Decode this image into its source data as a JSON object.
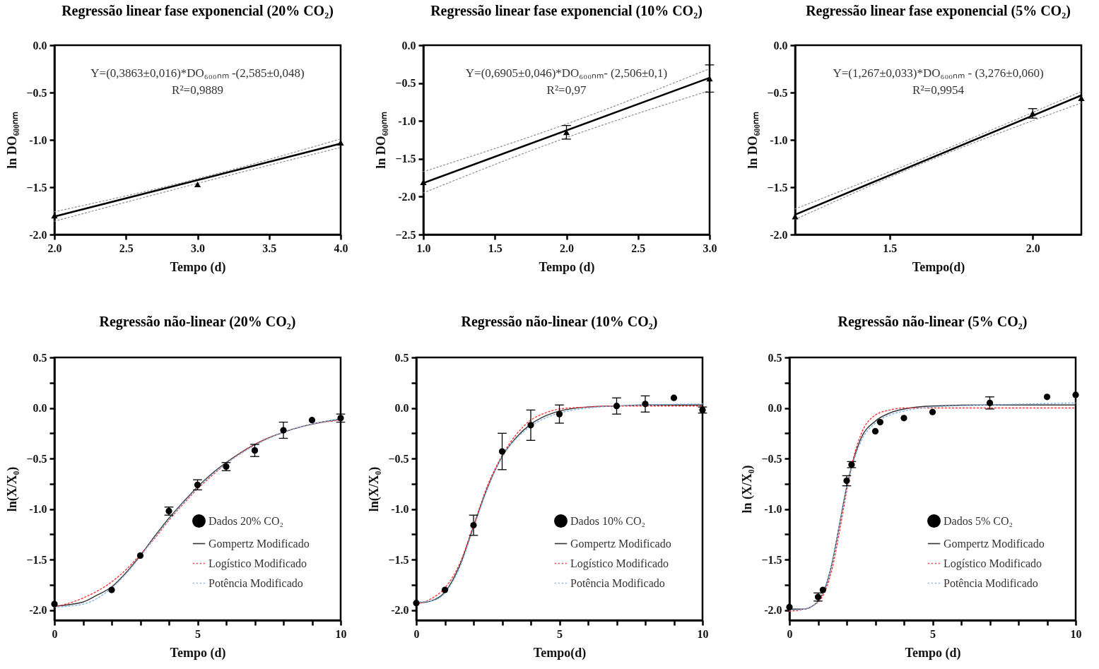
{
  "chart_data": [
    {
      "type": "scatter",
      "title": "Regressão linear fase exponencial (20% CO₂)",
      "xlabel": "Tempo (d)",
      "ylabel": "ln DO₆₀₀ₙₘ",
      "annotations": [
        "Y=(0,3863±0,016)*DO₆₀₀ₙₘ -(2,585±0,048)",
        "R²=0,9889"
      ],
      "xlim": [
        2,
        4
      ],
      "xticks": [
        {
          "value": 2,
          "label": "2.0"
        },
        2.5,
        {
          "value": 3,
          "label": "3.0"
        },
        3.5,
        {
          "value": 4,
          "label": "4.0"
        }
      ],
      "ylim": [
        -2,
        0
      ],
      "yticks": [
        {
          "value": -2,
          "label": "-2.0"
        },
        -1.5,
        {
          "value": -1,
          "label": "-1.0"
        },
        -0.5,
        {
          "value": 0,
          "label": "0.0"
        }
      ],
      "series": [
        {
          "type": "scatter",
          "color": "#000000",
          "marker": "triangle",
          "x": [
            2,
            3,
            4
          ],
          "values": [
            -1.8,
            -1.47,
            -1.03
          ]
        },
        {
          "type": "line",
          "color": "#000000",
          "x": [
            2,
            4
          ],
          "values": [
            -1.81,
            -1.04
          ]
        },
        {
          "type": "line",
          "color": "#8c8c8c",
          "line_style": "dotted",
          "x": [
            2,
            3,
            4
          ],
          "values": [
            -1.76,
            -1.41,
            -0.99
          ]
        },
        {
          "type": "line",
          "color": "#8c8c8c",
          "line_style": "dotted",
          "x": [
            2,
            3,
            4
          ],
          "values": [
            -1.86,
            -1.46,
            -1.08
          ]
        }
      ]
    },
    {
      "type": "scatter",
      "title": "Regressão linear fase exponencial (10% CO₂)",
      "xlabel": "Tempo (d)",
      "ylabel": "ln DO₆₀₀ₙₘ",
      "annotations": [
        "Y=(0,6905±0,046)*DO₆₀₀ₙₘ- (2,506±0,1)",
        "R²=0,97"
      ],
      "xlim": [
        1,
        3
      ],
      "xticks": [
        {
          "value": 1,
          "label": "1.0"
        },
        1.5,
        {
          "value": 2,
          "label": "2.0"
        },
        2.5,
        {
          "value": 3,
          "label": "3.0"
        }
      ],
      "ylim": [
        -2.5,
        0
      ],
      "yticks": [
        -2.5,
        {
          "value": -2,
          "label": "-2.0"
        },
        -1.5,
        {
          "value": -1,
          "label": "-1.0"
        },
        -0.5,
        {
          "value": 0,
          "label": "0.0"
        }
      ],
      "series": [
        {
          "type": "scatter",
          "color": "#000000",
          "marker": "triangle",
          "x": [
            1,
            2,
            3
          ],
          "values": [
            -1.81,
            -1.15,
            -0.44
          ],
          "errors": [
            null,
            0.09,
            0.18
          ]
        },
        {
          "type": "line",
          "color": "#000000",
          "x": [
            1,
            3
          ],
          "values": [
            -1.82,
            -0.43
          ]
        },
        {
          "type": "line",
          "color": "#8c8c8c",
          "line_style": "dotted",
          "x": [
            1,
            2,
            3
          ],
          "values": [
            -1.67,
            -1.04,
            -0.31
          ]
        },
        {
          "type": "line",
          "color": "#8c8c8c",
          "line_style": "dotted",
          "x": [
            1,
            2,
            3
          ],
          "values": [
            -1.95,
            -1.22,
            -0.6
          ]
        }
      ]
    },
    {
      "type": "scatter",
      "title": "Regressão linear fase exponencial (5% CO₂)",
      "xlabel": "Tempo(d)",
      "ylabel": "ln DO₆₀₀ₙₘ",
      "annotations": [
        "Y=(1,267±0,033)*DO₆₀₀ₙₘ - (3,276±0,060)",
        "R²=0,9954"
      ],
      "xlim": [
        1.17,
        2.17
      ],
      "xticks": [
        1.5,
        {
          "value": 2,
          "label": "2.0"
        }
      ],
      "ylim": [
        -2,
        0
      ],
      "yticks": [
        {
          "value": -2,
          "label": "-2.0"
        },
        -1.5,
        {
          "value": -1,
          "label": "-1.0"
        },
        -0.5,
        {
          "value": 0,
          "label": "0.0"
        }
      ],
      "series": [
        {
          "type": "scatter",
          "color": "#000000",
          "marker": "triangle",
          "x": [
            1.17,
            2,
            2.17
          ],
          "values": [
            -1.81,
            -0.72,
            -0.56
          ],
          "errors": [
            null,
            0.05,
            null
          ]
        },
        {
          "type": "line",
          "color": "#000000",
          "x": [
            1.17,
            2.17
          ],
          "values": [
            -1.79,
            -0.53
          ]
        },
        {
          "type": "line",
          "color": "#8c8c8c",
          "line_style": "dotted",
          "x": [
            1.17,
            1.67,
            2.17
          ],
          "values": [
            -1.73,
            -1.13,
            -0.49
          ]
        },
        {
          "type": "line",
          "color": "#8c8c8c",
          "line_style": "dotted",
          "x": [
            1.17,
            1.67,
            2.17
          ],
          "values": [
            -1.84,
            -1.18,
            -0.61
          ]
        }
      ]
    },
    {
      "type": "scatter",
      "title": "Regressão não-linear (20% CO₂)",
      "xlabel": "Tempo (d)",
      "ylabel": "ln(X/X₀)",
      "legend": "bottom right",
      "xlim": [
        0,
        10
      ],
      "xticks": [
        0,
        {
          "value": 1,
          "label": null
        },
        {
          "value": 2,
          "label": null
        },
        {
          "value": 3,
          "label": null
        },
        {
          "value": 4,
          "label": null
        },
        5,
        {
          "value": 6,
          "label": null
        },
        {
          "value": 7,
          "label": null
        },
        {
          "value": 8,
          "label": null
        },
        {
          "value": 9,
          "label": null
        },
        10
      ],
      "ylim": [
        -2.1,
        0.5
      ],
      "yticks": [
        {
          "value": -2,
          "label": "-2.0"
        },
        {
          "value": -1.75,
          "label": null
        },
        -1.5,
        {
          "value": -1.25,
          "label": null
        },
        {
          "value": -1,
          "label": "-1.0"
        },
        {
          "value": -0.75,
          "label": null
        },
        -0.5,
        {
          "value": -0.25,
          "label": null
        },
        {
          "value": 0,
          "label": "0.0"
        },
        {
          "value": 0.25,
          "label": null
        },
        0.5
      ],
      "series": [
        {
          "name": "Dados 20% CO₂",
          "type": "scatter",
          "color": "#000000",
          "marker": "circle",
          "x": [
            0,
            2,
            3,
            4,
            5,
            6,
            7,
            8,
            9,
            10
          ],
          "values": [
            -1.94,
            -1.8,
            -1.46,
            -1.02,
            -0.76,
            -0.58,
            -0.42,
            -0.22,
            -0.12,
            -0.1
          ],
          "errors": [
            null,
            null,
            null,
            0.04,
            0.05,
            0.04,
            0.06,
            0.08,
            null,
            0.04
          ]
        },
        {
          "name": "Gompertz Modificado",
          "type": "line",
          "color": "#333333",
          "x": [
            0,
            1,
            1.5,
            2,
            2.5,
            3,
            3.5,
            4,
            4.5,
            5,
            5.5,
            6,
            7,
            8,
            9,
            10
          ],
          "values": [
            -1.96,
            -1.92,
            -1.85,
            -1.77,
            -1.63,
            -1.46,
            -1.27,
            -1.09,
            -0.93,
            -0.78,
            -0.65,
            -0.54,
            -0.36,
            -0.24,
            -0.16,
            -0.11
          ]
        },
        {
          "name": "Logístico Modificado",
          "type": "line",
          "color": "#ff3333",
          "line_style": "dotted",
          "x": [
            0,
            1,
            2,
            2.5,
            3,
            3.5,
            4,
            4.5,
            5,
            5.5,
            6,
            7,
            8,
            9,
            10
          ],
          "values": [
            -1.97,
            -1.88,
            -1.72,
            -1.6,
            -1.45,
            -1.29,
            -1.11,
            -0.95,
            -0.8,
            -0.67,
            -0.55,
            -0.36,
            -0.24,
            -0.16,
            -0.12
          ]
        },
        {
          "name": "Potência Modificado",
          "type": "line",
          "color": "#7fb2e5",
          "line_style": "dotted",
          "x": [
            0,
            1,
            2,
            2.5,
            3,
            3.5,
            4,
            4.5,
            5,
            5.5,
            6,
            7,
            8,
            9,
            10
          ],
          "values": [
            -1.97,
            -1.94,
            -1.78,
            -1.64,
            -1.47,
            -1.28,
            -1.1,
            -0.94,
            -0.79,
            -0.66,
            -0.55,
            -0.37,
            -0.24,
            -0.16,
            -0.11
          ]
        }
      ]
    },
    {
      "type": "scatter",
      "title": "Regressão não-linear (10% CO₂)",
      "xlabel": "Tempo(d)",
      "ylabel": "ln(X/X₀)",
      "legend": "bottom right",
      "xlim": [
        0,
        10
      ],
      "xticks": [
        0,
        {
          "value": 1,
          "label": null
        },
        {
          "value": 2,
          "label": null
        },
        {
          "value": 3,
          "label": null
        },
        {
          "value": 4,
          "label": null
        },
        5,
        {
          "value": 6,
          "label": null
        },
        {
          "value": 7,
          "label": null
        },
        {
          "value": 8,
          "label": null
        },
        {
          "value": 9,
          "label": null
        },
        10
      ],
      "ylim": [
        -2.1,
        0.5
      ],
      "yticks": [
        {
          "value": -2,
          "label": "-2.0"
        },
        {
          "value": -1.75,
          "label": null
        },
        -1.5,
        {
          "value": -1.25,
          "label": null
        },
        {
          "value": -1,
          "label": "-1.0"
        },
        {
          "value": -0.75,
          "label": null
        },
        -0.5,
        {
          "value": -0.25,
          "label": null
        },
        {
          "value": 0,
          "label": "0.0"
        },
        {
          "value": 0.25,
          "label": null
        },
        0.5
      ],
      "series": [
        {
          "name": "Dados 10% CO₂",
          "type": "scatter",
          "color": "#000000",
          "marker": "circle",
          "x": [
            0,
            1,
            2,
            3,
            4,
            5,
            7,
            8,
            9,
            10
          ],
          "values": [
            -1.93,
            -1.8,
            -1.16,
            -0.43,
            -0.17,
            -0.06,
            0.02,
            0.04,
            0.1,
            -0.02
          ],
          "errors": [
            null,
            null,
            0.1,
            0.18,
            0.15,
            0.09,
            0.08,
            0.08,
            null,
            0.03
          ]
        },
        {
          "name": "Gompertz Modificado",
          "type": "line",
          "color": "#333333",
          "x": [
            0,
            0.5,
            1,
            1.5,
            2,
            2.5,
            3,
            3.5,
            4,
            4.5,
            5,
            6,
            7,
            8,
            10
          ],
          "values": [
            -1.93,
            -1.91,
            -1.82,
            -1.57,
            -1.17,
            -0.78,
            -0.48,
            -0.29,
            -0.16,
            -0.08,
            -0.03,
            0.01,
            0.02,
            0.03,
            0.03
          ]
        },
        {
          "name": "Logístico Modificado",
          "type": "line",
          "color": "#ff3333",
          "line_style": "dotted",
          "x": [
            0,
            0.5,
            1,
            1.5,
            2,
            2.5,
            3,
            3.5,
            4,
            4.5,
            5,
            6,
            7,
            10
          ],
          "values": [
            -1.94,
            -1.89,
            -1.78,
            -1.55,
            -1.16,
            -0.76,
            -0.47,
            -0.26,
            -0.12,
            -0.05,
            -0.01,
            0.01,
            0.02,
            0.02
          ]
        },
        {
          "name": "Potência Modificado",
          "type": "line",
          "color": "#7fb2e5",
          "line_style": "dotted",
          "x": [
            0,
            0.5,
            1,
            1.5,
            2,
            2.5,
            3,
            3.5,
            4,
            4.5,
            5,
            6,
            7,
            8,
            10
          ],
          "values": [
            -1.92,
            -1.91,
            -1.83,
            -1.59,
            -1.19,
            -0.79,
            -0.48,
            -0.3,
            -0.18,
            -0.1,
            -0.05,
            0,
            0.02,
            0.03,
            0.04
          ]
        }
      ]
    },
    {
      "type": "scatter",
      "title": "Regressão não-linear (5% CO₂)",
      "xlabel": "Tempo (d)",
      "ylabel": "ln (X/X₀)",
      "legend": "bottom right",
      "xlim": [
        0,
        10
      ],
      "xticks": [
        0,
        {
          "value": 1,
          "label": null
        },
        {
          "value": 2,
          "label": null
        },
        {
          "value": 3,
          "label": null
        },
        {
          "value": 4,
          "label": null
        },
        5,
        {
          "value": 6,
          "label": null
        },
        {
          "value": 7,
          "label": null
        },
        {
          "value": 8,
          "label": null
        },
        {
          "value": 9,
          "label": null
        },
        10
      ],
      "ylim": [
        -2.1,
        0.5
      ],
      "yticks": [
        {
          "value": -2,
          "label": "-2.0"
        },
        {
          "value": -1.75,
          "label": null
        },
        -1.5,
        {
          "value": -1.25,
          "label": null
        },
        {
          "value": -1,
          "label": "-1.0"
        },
        {
          "value": -0.75,
          "label": null
        },
        -0.5,
        {
          "value": -0.25,
          "label": null
        },
        {
          "value": 0,
          "label": "0.0"
        },
        {
          "value": 0.25,
          "label": null
        },
        0.5
      ],
      "series": [
        {
          "name": "Dados 5% CO₂",
          "type": "scatter",
          "color": "#000000",
          "marker": "circle",
          "x": [
            0,
            1,
            1.17,
            2,
            2.17,
            3,
            3.17,
            4,
            5,
            7,
            9,
            10
          ],
          "values": [
            -1.97,
            -1.87,
            -1.8,
            -0.72,
            -0.56,
            -0.23,
            -0.14,
            -0.1,
            -0.04,
            0.05,
            0.11,
            0.13
          ],
          "errors": [
            null,
            0.04,
            null,
            0.05,
            0.03,
            null,
            null,
            null,
            null,
            0.06,
            null,
            null
          ]
        },
        {
          "name": "Gompertz Modificado",
          "type": "line",
          "color": "#333333",
          "x": [
            0,
            0.5,
            0.8,
            1,
            1.25,
            1.5,
            1.75,
            2,
            2.25,
            2.5,
            3,
            3.5,
            4,
            5,
            7,
            10
          ],
          "values": [
            -1.99,
            -1.99,
            -1.96,
            -1.91,
            -1.78,
            -1.52,
            -1.15,
            -0.78,
            -0.5,
            -0.3,
            -0.13,
            -0.05,
            -0.01,
            0.02,
            0.03,
            0.03
          ]
        },
        {
          "name": "Logístico Modificado",
          "type": "line",
          "color": "#ff3333",
          "line_style": "dotted",
          "x": [
            0,
            0.5,
            1,
            1.25,
            1.5,
            1.75,
            2,
            2.25,
            2.5,
            3,
            3.5,
            4,
            5,
            10
          ],
          "values": [
            -2.01,
            -1.99,
            -1.92,
            -1.81,
            -1.58,
            -1.22,
            -0.82,
            -0.48,
            -0.26,
            -0.07,
            -0.02,
            0,
            0,
            0
          ]
        },
        {
          "name": "Potência Modificado",
          "type": "line",
          "color": "#7fb2e5",
          "line_style": "dotted",
          "x": [
            0,
            0.5,
            1,
            1.25,
            1.5,
            1.75,
            2,
            2.25,
            2.5,
            3,
            3.5,
            4,
            5,
            7,
            10
          ],
          "values": [
            -2,
            -1.99,
            -1.91,
            -1.77,
            -1.52,
            -1.15,
            -0.79,
            -0.52,
            -0.33,
            -0.15,
            -0.07,
            -0.03,
            0.01,
            0.03,
            0.05
          ]
        }
      ]
    }
  ]
}
